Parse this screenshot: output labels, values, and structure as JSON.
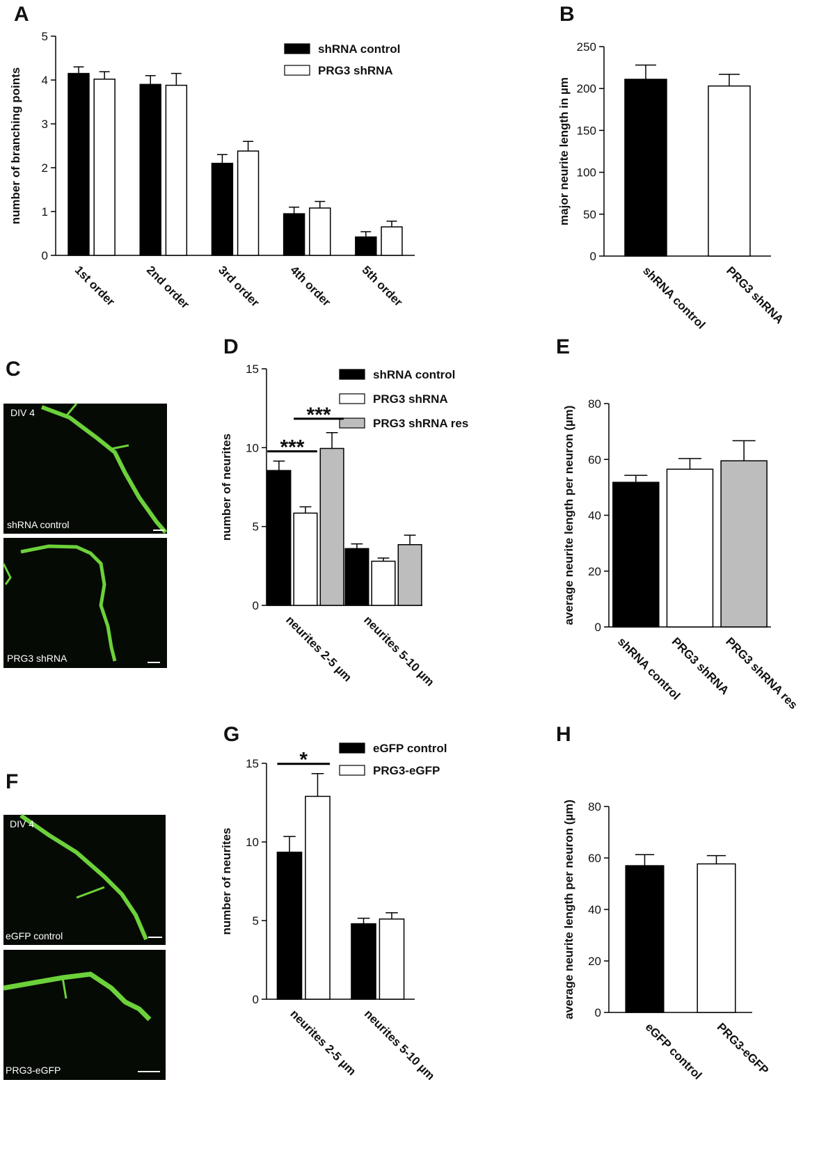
{
  "chart_data": [
    {
      "type": "bar",
      "label": "A",
      "y_label": "number of branching points",
      "categories": [
        "1st order",
        "2nd order",
        "3rd order",
        "4th order",
        "5th order"
      ],
      "series": [
        {
          "name": "shRNA control",
          "color": "#000000",
          "values": [
            4.15,
            3.9,
            2.1,
            0.95,
            0.42
          ],
          "errors": [
            0.15,
            0.2,
            0.2,
            0.15,
            0.12
          ]
        },
        {
          "name": "PRG3 shRNA",
          "color": "#ffffff",
          "values": [
            4.02,
            3.88,
            2.38,
            1.08,
            0.65
          ],
          "errors": [
            0.17,
            0.27,
            0.22,
            0.15,
            0.13
          ]
        }
      ],
      "ylim": [
        0,
        5
      ],
      "yticks": [
        0,
        1,
        2,
        3,
        4,
        5
      ]
    },
    {
      "type": "bar",
      "label": "B",
      "y_label": "major neurite length in µm",
      "categories": [
        "shRNA control",
        "PRG3 shRNA"
      ],
      "values": [
        211,
        203
      ],
      "errors": [
        17,
        14
      ],
      "colors": [
        "#000000",
        "#ffffff"
      ],
      "ylim": [
        0,
        250
      ],
      "yticks": [
        0,
        50,
        100,
        150,
        200,
        250
      ]
    },
    {
      "type": "bar",
      "label": "D",
      "y_label": "number of neurites",
      "categories": [
        "neurites 2-5 µm",
        "neurites 5-10 µm"
      ],
      "series": [
        {
          "name": "shRNA control",
          "color": "#000000",
          "values": [
            8.55,
            3.6
          ],
          "errors": [
            0.6,
            0.3
          ]
        },
        {
          "name": "PRG3 shRNA",
          "color": "#ffffff",
          "values": [
            5.85,
            2.8
          ],
          "errors": [
            0.4,
            0.2
          ]
        },
        {
          "name": "PRG3 shRNA res",
          "color": "#bdbdbd",
          "values": [
            9.95,
            3.85
          ],
          "errors": [
            1.0,
            0.6
          ]
        }
      ],
      "annotations": [
        "***",
        "***"
      ],
      "ylim": [
        0,
        15
      ],
      "yticks": [
        0,
        5,
        10,
        15
      ]
    },
    {
      "type": "bar",
      "label": "E",
      "y_label": "average neurite length per neuron (µm)",
      "categories": [
        "shRNA control",
        "PRG3 shRNA",
        "PRG3 shRNA res"
      ],
      "values": [
        51.8,
        56.5,
        59.5
      ],
      "errors": [
        2.5,
        3.8,
        7.2
      ],
      "colors": [
        "#000000",
        "#ffffff",
        "#bdbdbd"
      ],
      "ylim": [
        0,
        80
      ],
      "yticks": [
        0,
        20,
        40,
        60,
        80
      ]
    },
    {
      "type": "bar",
      "label": "G",
      "y_label": "number of neurites",
      "categories": [
        "neurites 2-5 µm",
        "neurites 5-10 µm"
      ],
      "series": [
        {
          "name": "eGFP control",
          "color": "#000000",
          "values": [
            9.35,
            4.8
          ],
          "errors": [
            1.0,
            0.35
          ]
        },
        {
          "name": "PRG3-eGFP",
          "color": "#ffffff",
          "values": [
            12.9,
            5.1
          ],
          "errors": [
            1.45,
            0.4
          ]
        }
      ],
      "annotations": [
        "*"
      ],
      "ylim": [
        0,
        15
      ],
      "yticks": [
        0,
        5,
        10,
        15
      ]
    },
    {
      "type": "bar",
      "label": "H",
      "y_label": "average neurite length per neuron (µm)",
      "categories": [
        "eGFP control",
        "PRG3-eGFP"
      ],
      "values": [
        57,
        57.7
      ],
      "errors": [
        4.3,
        3.2
      ],
      "colors": [
        "#000000",
        "#ffffff"
      ],
      "ylim": [
        0,
        80
      ],
      "yticks": [
        0,
        20,
        40,
        60,
        80
      ]
    }
  ],
  "micrographs": [
    {
      "label": "C",
      "images": [
        {
          "tag": "DIV 4",
          "caption": "shRNA control"
        },
        {
          "caption": "PRG3 shRNA"
        }
      ]
    },
    {
      "label": "F",
      "images": [
        {
          "tag": "DIV 4",
          "caption": "eGFP control"
        },
        {
          "caption": "PRG3-eGFP"
        }
      ]
    }
  ]
}
